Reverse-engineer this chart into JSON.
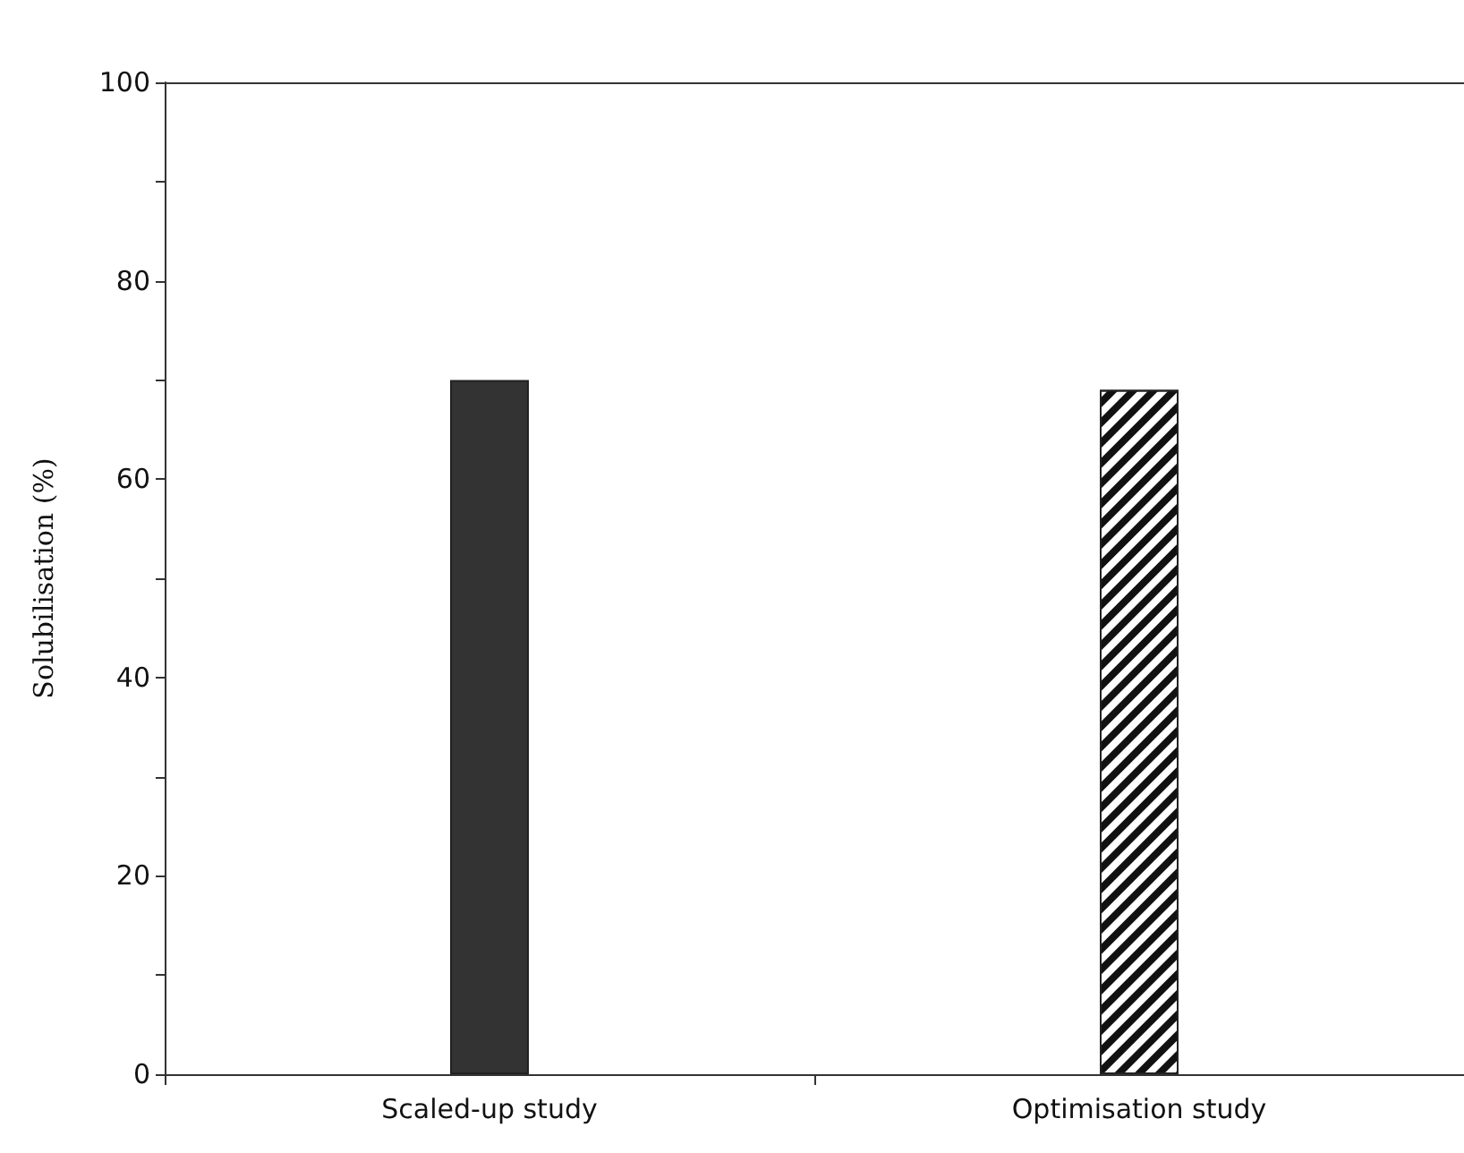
{
  "chart_data": {
    "type": "bar",
    "ylabel": "Solubilisation (%)",
    "categories": [
      "Scaled-up study",
      "Optimisation study"
    ],
    "values": [
      70,
      69
    ],
    "colors": [
      "#333333",
      "#ffffff"
    ],
    "ylim": [
      0,
      100
    ],
    "yticks": [
      0,
      {
        "value": 10,
        "label": null
      },
      20,
      {
        "value": 30,
        "label": null
      },
      40,
      {
        "value": 50,
        "label": null
      },
      60,
      {
        "value": 70,
        "label": null
      },
      80,
      {
        "value": 90,
        "label": null
      },
      100
    ]
  }
}
